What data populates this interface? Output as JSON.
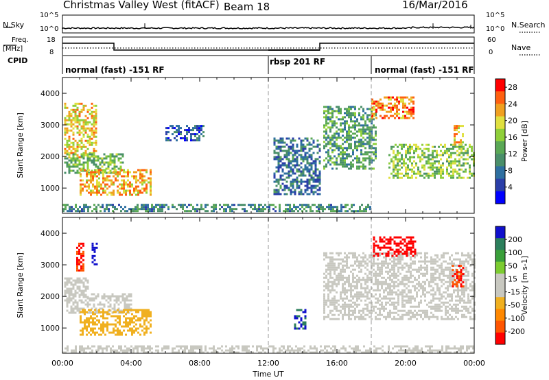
{
  "header": {
    "station": "Christmas Valley West (fitACF)",
    "beam": "Beam 18",
    "date": "16/Mar/2016"
  },
  "left_labels": {
    "nsky": "N.Sky",
    "freq_line1": "Freq.",
    "freq_line2": "[MHz]",
    "cpid": "CPID"
  },
  "right_labels": {
    "nsearch": "N.Search",
    "nave": "Nave"
  },
  "noise_axis": {
    "left_top": "10^5",
    "left_bottom": "10^0",
    "right_top": "10^5",
    "right_bottom": "10^0"
  },
  "freq_axis": {
    "left_top": "18",
    "left_bottom": "8",
    "right_top": "60",
    "right_bottom": "0"
  },
  "cpid_segments": [
    {
      "label": "normal (fast) -151 RF",
      "start": "00:00",
      "end": "12:00"
    },
    {
      "label": "rbsp 201 RF",
      "start": "12:00",
      "end": "18:00"
    },
    {
      "label": "normal (fast) -151 RF",
      "start": "18:00",
      "end": "00:00"
    }
  ],
  "colors": {
    "power_scale": [
      "#0000ff",
      "#2b3fa8",
      "#2e6fa0",
      "#4a8f6a",
      "#5aa855",
      "#8fcf3a",
      "#e0e040",
      "#f0a020",
      "#ff6010",
      "#ff0000"
    ],
    "velocity_scale": [
      "#1010cc",
      "#2c7f5c",
      "#3a9f3a",
      "#7ccc30",
      "#c8c8c0",
      "#c8c8c0",
      "#f0b020",
      "#ff8800",
      "#ff5500",
      "#ff0000"
    ],
    "gray": "#c8c8c0"
  },
  "chart_data": [
    {
      "type": "heatmap",
      "panel": "power",
      "ylabel": "Slant Range [km]",
      "ylim": [
        200,
        4500
      ],
      "yticks": [
        "1000",
        "2000",
        "3000",
        "4000"
      ],
      "xticks": [
        "00:00",
        "04:00",
        "08:00",
        "12:00",
        "16:00",
        "20:00",
        "00:00"
      ],
      "xlabel": "Time UT",
      "colorbar_label": "Power [dB]",
      "colorbar_ticks": [
        "4",
        "8",
        "12",
        "16",
        "20",
        "24",
        "28"
      ],
      "colorbar_range": [
        0,
        30
      ],
      "echo_regions": [
        {
          "t_start": 0.1,
          "t_end": 2.0,
          "r_start": 2000,
          "r_end": 3700,
          "level": 20
        },
        {
          "t_start": 0.1,
          "t_end": 3.5,
          "r_start": 1500,
          "r_end": 2100,
          "level": 14
        },
        {
          "t_start": 1.0,
          "t_end": 5.2,
          "r_start": 800,
          "r_end": 1600,
          "level": 22
        },
        {
          "t_start": 6.0,
          "t_end": 8.2,
          "r_start": 2500,
          "r_end": 3000,
          "level": 6
        },
        {
          "t_start": 12.3,
          "t_end": 15.0,
          "r_start": 800,
          "r_end": 2600,
          "level": 8
        },
        {
          "t_start": 15.2,
          "t_end": 18.3,
          "r_start": 1600,
          "r_end": 3600,
          "level": 12
        },
        {
          "t_start": 18.0,
          "t_end": 20.5,
          "r_start": 3200,
          "r_end": 3900,
          "level": 24
        },
        {
          "t_start": 19.0,
          "t_end": 24.0,
          "r_start": 1300,
          "r_end": 2400,
          "level": 16
        },
        {
          "t_start": 22.8,
          "t_end": 23.4,
          "r_start": 2400,
          "r_end": 3000,
          "level": 22
        },
        {
          "t_start": 0.0,
          "t_end": 18.0,
          "r_start": 250,
          "r_end": 500,
          "level": 10
        }
      ]
    },
    {
      "type": "heatmap",
      "panel": "velocity",
      "ylabel": "Slant Range [km]",
      "ylim": [
        200,
        4500
      ],
      "yticks": [
        "1000",
        "2000",
        "3000",
        "4000"
      ],
      "xticks": [
        "00:00",
        "04:00",
        "08:00",
        "12:00",
        "16:00",
        "20:00",
        "00:00"
      ],
      "xlabel": "Time UT",
      "colorbar_label": "Velocity [m s-1]",
      "colorbar_ticks": [
        "200",
        "100",
        "50",
        "15",
        "-15",
        "-50",
        "-100",
        "-200"
      ],
      "colorbar_range": [
        -250,
        250
      ],
      "echo_regions": [
        {
          "t_start": 0.1,
          "t_end": 1.5,
          "r_start": 2000,
          "r_end": 2600,
          "level": 0
        },
        {
          "t_start": 0.1,
          "t_end": 4.0,
          "r_start": 1500,
          "r_end": 2100,
          "level": 0
        },
        {
          "t_start": 1.0,
          "t_end": 5.2,
          "r_start": 800,
          "r_end": 1600,
          "level": -80
        },
        {
          "t_start": 1.7,
          "t_end": 2.0,
          "r_start": 3000,
          "r_end": 3700,
          "level": 220
        },
        {
          "t_start": 0.8,
          "t_end": 1.2,
          "r_start": 2800,
          "r_end": 3700,
          "level": -200
        },
        {
          "t_start": 13.5,
          "t_end": 14.2,
          "r_start": 1000,
          "r_end": 1600,
          "level": 200
        },
        {
          "t_start": 15.2,
          "t_end": 24.0,
          "r_start": 1300,
          "r_end": 3400,
          "level": 0
        },
        {
          "t_start": 18.1,
          "t_end": 20.6,
          "r_start": 3300,
          "r_end": 3900,
          "level": -220
        },
        {
          "t_start": 22.7,
          "t_end": 23.4,
          "r_start": 2300,
          "r_end": 3000,
          "level": -200
        },
        {
          "t_start": 0.0,
          "t_end": 24.0,
          "r_start": 250,
          "r_end": 450,
          "level": 30
        }
      ]
    }
  ]
}
